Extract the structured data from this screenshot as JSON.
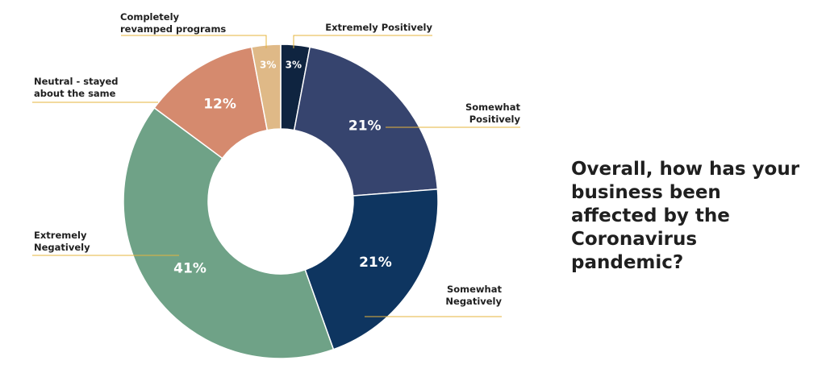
{
  "chart_data": {
    "type": "pie",
    "variant": "donut",
    "categories": [
      "Extremely Positively",
      "Somewhat Positively",
      "Somewhat Negatively",
      "Extremely Negatively",
      "Neutral - stayed about the same",
      "Completely revamped programs"
    ],
    "values": [
      3,
      21,
      21,
      41,
      12,
      3
    ],
    "value_labels": [
      "3%",
      "21%",
      "21%",
      "41%",
      "12%",
      "3%"
    ],
    "category_lines": [
      [
        "Extremely Positively"
      ],
      [
        "Somewhat",
        "Positively"
      ],
      [
        "Somewhat",
        "Negatively"
      ],
      [
        "Extremely",
        "Negatively"
      ],
      [
        "Neutral - stayed",
        "about the same"
      ],
      [
        "Completely",
        "revamped programs"
      ]
    ],
    "colors": [
      "#0f2440",
      "#36446e",
      "#0e3560",
      "#6fa287",
      "#d58a6e",
      "#dfb987"
    ],
    "leader_color": "#e5b43c",
    "title": "Overall, how has your business been affected by the Coronavirus pandemic?"
  }
}
